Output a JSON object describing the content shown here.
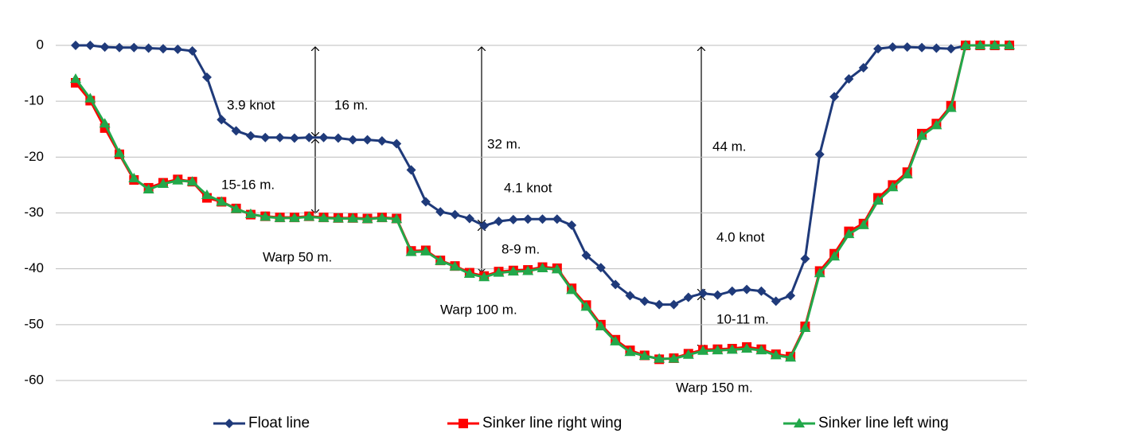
{
  "chart_data": {
    "type": "line",
    "categories": [
      null,
      null,
      null,
      null,
      null,
      null,
      null,
      null,
      null,
      null,
      null,
      null,
      null,
      null,
      null,
      null,
      null,
      null,
      null,
      null,
      null,
      null,
      null,
      null,
      null,
      null,
      null,
      null,
      null,
      null,
      null,
      null,
      null,
      null,
      null,
      null,
      null,
      null,
      null,
      null,
      null,
      null,
      null,
      null,
      null,
      null,
      null,
      null,
      null,
      null,
      null,
      null,
      null,
      null,
      null,
      null,
      null,
      null,
      null,
      null,
      null,
      null,
      null,
      null,
      null
    ],
    "series": [
      {
        "name": "Float line",
        "color": "#1f3a7a",
        "marker": "diamond",
        "values": [
          0,
          0,
          -0.3,
          -0.4,
          -0.4,
          -0.5,
          -0.6,
          -0.7,
          -1,
          -5.7,
          -13.3,
          -15.3,
          -16.2,
          -16.5,
          -16.5,
          -16.6,
          -16.5,
          -16.5,
          -16.6,
          -16.9,
          -16.9,
          -17.1,
          -17.6,
          -22.3,
          -28,
          -29.8,
          -30.3,
          -31,
          -32.3,
          -31.5,
          -31.2,
          -31.1,
          -31.1,
          -31.1,
          -32.2,
          -37.6,
          -39.8,
          -42.8,
          -44.8,
          -45.8,
          -46.4,
          -46.4,
          -45.1,
          -44.4,
          -44.7,
          -44,
          -43.7,
          -44,
          -45.8,
          -44.8,
          -38.2,
          -19.5,
          -9.2,
          -6,
          -4,
          -0.6,
          -0.3,
          -0.3,
          -0.4,
          -0.5,
          -0.6,
          -0.1,
          null,
          null,
          null
        ]
      },
      {
        "name": "Sinker line right wing",
        "color": "#ff0000",
        "marker": "square",
        "values": [
          -6.7,
          -9.9,
          -14.8,
          -19.5,
          -24.1,
          -25.5,
          -24.6,
          -24,
          -24.4,
          -27.3,
          -28,
          -29.2,
          -30.3,
          -30.6,
          -30.8,
          -30.8,
          -30.6,
          -30.8,
          -30.9,
          -30.9,
          -31,
          -30.8,
          -31,
          -36.8,
          -36.7,
          -38.5,
          -39.5,
          -40.7,
          -41.3,
          -40.5,
          -40.3,
          -40.2,
          -39.7,
          -39.9,
          -43.5,
          -46.5,
          -50,
          -52.7,
          -54.6,
          -55.5,
          -56.2,
          -56,
          -55.2,
          -54.5,
          -54.4,
          -54.3,
          -54,
          -54.4,
          -55.3,
          -55.7,
          -50.3,
          -40.4,
          -37.3,
          -33.3,
          -31.9,
          -27.3,
          -25,
          -22.7,
          -15.8,
          -14,
          -10.8,
          0,
          0,
          0,
          0
        ]
      },
      {
        "name": "Sinker line left wing",
        "color": "#22a84a",
        "marker": "triangle",
        "values": [
          -6,
          -9.5,
          -14,
          -19.3,
          -23.8,
          -25.8,
          -24.8,
          -24.2,
          -24.4,
          -26.8,
          -28,
          -29.3,
          -30.2,
          -30.7,
          -30.9,
          -30.9,
          -30.7,
          -30.9,
          -31,
          -31,
          -31.1,
          -30.9,
          -31.1,
          -37,
          -36.9,
          -38.6,
          -39.6,
          -40.9,
          -41.5,
          -40.7,
          -40.5,
          -40.4,
          -39.9,
          -40.1,
          -43.8,
          -46.8,
          -50.3,
          -53,
          -54.9,
          -55.6,
          -56.1,
          -56.1,
          -55.4,
          -54.7,
          -54.6,
          -54.5,
          -54.3,
          -54.6,
          -55.5,
          -55.9,
          -50.6,
          -40.8,
          -37.8,
          -33.8,
          -32.2,
          -27.8,
          -25.4,
          -23.1,
          -16.2,
          -14.3,
          -11.2,
          0,
          0,
          0,
          0
        ]
      }
    ],
    "ylim": [
      -60,
      0
    ],
    "yticks": [
      -60,
      -50,
      -40,
      -30,
      -20,
      -10,
      0
    ],
    "grid": true,
    "annotations": [
      "3.9 knot",
      "16 m.",
      "32 m.",
      "44 m.",
      "15-16 m.",
      "4.1 knot",
      "4.0 knot",
      "Warp 50 m.",
      "8-9 m.",
      "Warp 100 m.",
      "10-11 m.",
      "Warp 150 m."
    ],
    "legend": "bottom"
  }
}
